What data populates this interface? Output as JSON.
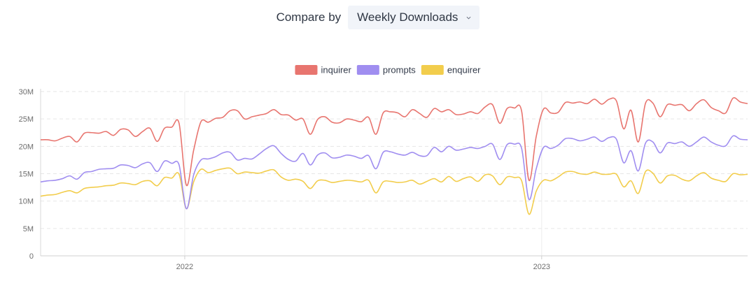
{
  "controls": {
    "compare_label": "Compare by",
    "select_value": "Weekly Downloads",
    "chevron_icon": "chevron-down-icon"
  },
  "chart_data": {
    "type": "line",
    "title": "",
    "xlabel": "",
    "ylabel": "",
    "ylim": [
      0,
      30000000
    ],
    "x_ticks": [
      {
        "label": "2022",
        "week": 54
      },
      {
        "label": "2023",
        "week": 106
      }
    ],
    "y_ticks": [
      {
        "label": "0",
        "value": 0
      },
      {
        "label": "5M",
        "value": 5000000
      },
      {
        "label": "10M",
        "value": 10000000
      },
      {
        "label": "15M",
        "value": 15000000
      },
      {
        "label": "20M",
        "value": 20000000
      },
      {
        "label": "25M",
        "value": 25000000
      },
      {
        "label": "30M",
        "value": 30000000
      }
    ],
    "x_range_weeks": [
      33,
      136
    ],
    "legend_position": "top-center",
    "series": [
      {
        "name": "inquirer",
        "color": "#e8756f",
        "values": [
          21.2,
          21.2,
          21.0,
          21.5,
          21.8,
          20.8,
          22.4,
          22.5,
          22.4,
          22.7,
          22.0,
          23.1,
          23.0,
          21.8,
          22.7,
          23.3,
          20.9,
          23.3,
          23.5,
          24.2,
          12.9,
          19.3,
          24.5,
          24.4,
          25.1,
          25.3,
          26.5,
          26.5,
          25.0,
          25.4,
          25.7,
          26.0,
          26.7,
          25.8,
          25.7,
          24.8,
          25.0,
          22.2,
          24.9,
          25.4,
          24.4,
          24.3,
          25.0,
          24.8,
          24.5,
          25.3,
          22.2,
          26.1,
          26.3,
          26.1,
          25.4,
          26.7,
          26.0,
          25.3,
          26.9,
          26.3,
          26.7,
          25.8,
          25.9,
          26.3,
          26.0,
          27.2,
          27.6,
          24.2,
          26.9,
          27.0,
          26.4,
          13.8,
          21.8,
          26.8,
          26.1,
          26.2,
          28.0,
          27.9,
          28.1,
          27.8,
          28.6,
          27.7,
          28.6,
          28.3,
          23.2,
          26.6,
          20.8,
          27.9,
          27.9,
          25.4,
          27.6,
          27.5,
          27.6,
          26.5,
          27.8,
          28.5,
          27.1,
          26.5,
          26.1,
          28.8,
          28.1,
          27.8
        ]
      },
      {
        "name": "prompts",
        "color": "#a08ef0",
        "values": [
          13.5,
          13.7,
          13.8,
          14.1,
          14.6,
          14.0,
          15.2,
          15.4,
          15.8,
          15.9,
          16.0,
          16.6,
          16.5,
          16.1,
          16.8,
          17.0,
          15.4,
          17.3,
          16.9,
          16.6,
          8.6,
          14.8,
          17.5,
          17.7,
          18.1,
          18.8,
          18.9,
          17.5,
          17.8,
          17.7,
          18.6,
          19.6,
          20.1,
          18.7,
          17.6,
          17.3,
          18.7,
          16.6,
          18.4,
          18.8,
          17.9,
          18.0,
          18.4,
          18.2,
          17.8,
          18.3,
          15.9,
          18.9,
          19.0,
          18.6,
          18.4,
          18.9,
          18.3,
          18.3,
          19.8,
          19.0,
          20.0,
          19.3,
          19.5,
          19.8,
          19.6,
          20.0,
          20.4,
          17.6,
          20.3,
          20.4,
          19.6,
          10.3,
          15.9,
          19.8,
          19.6,
          20.2,
          21.4,
          21.4,
          21.0,
          21.3,
          21.7,
          20.9,
          21.6,
          21.3,
          17.0,
          19.2,
          15.5,
          20.6,
          20.8,
          18.8,
          20.6,
          20.5,
          20.8,
          20.0,
          20.8,
          21.7,
          20.8,
          20.2,
          20.1,
          21.9,
          21.3,
          21.2
        ]
      },
      {
        "name": "enquirer",
        "color": "#f2cd4c",
        "values": [
          10.9,
          11.1,
          11.2,
          11.6,
          11.9,
          11.5,
          12.3,
          12.5,
          12.6,
          12.8,
          12.9,
          13.3,
          13.2,
          13.0,
          13.6,
          13.7,
          12.8,
          14.3,
          14.2,
          14.9,
          8.6,
          13.5,
          15.8,
          15.2,
          15.6,
          15.9,
          16.0,
          15.0,
          15.3,
          15.2,
          15.1,
          15.5,
          15.7,
          14.4,
          13.8,
          14.0,
          13.6,
          12.3,
          13.7,
          13.8,
          13.4,
          13.6,
          13.8,
          13.7,
          13.5,
          13.8,
          11.5,
          13.5,
          13.6,
          13.4,
          13.5,
          13.8,
          13.1,
          13.6,
          14.1,
          13.5,
          14.5,
          13.6,
          14.1,
          14.4,
          13.6,
          14.8,
          14.6,
          13.0,
          14.4,
          14.3,
          13.7,
          7.6,
          11.8,
          13.8,
          13.7,
          14.4,
          15.3,
          15.4,
          15.0,
          14.9,
          15.3,
          14.9,
          14.9,
          14.9,
          12.6,
          13.7,
          11.4,
          15.4,
          15.1,
          13.3,
          14.6,
          14.7,
          14.0,
          13.7,
          14.6,
          15.2,
          14.2,
          13.8,
          13.6,
          15.0,
          14.8,
          14.9
        ]
      }
    ]
  }
}
